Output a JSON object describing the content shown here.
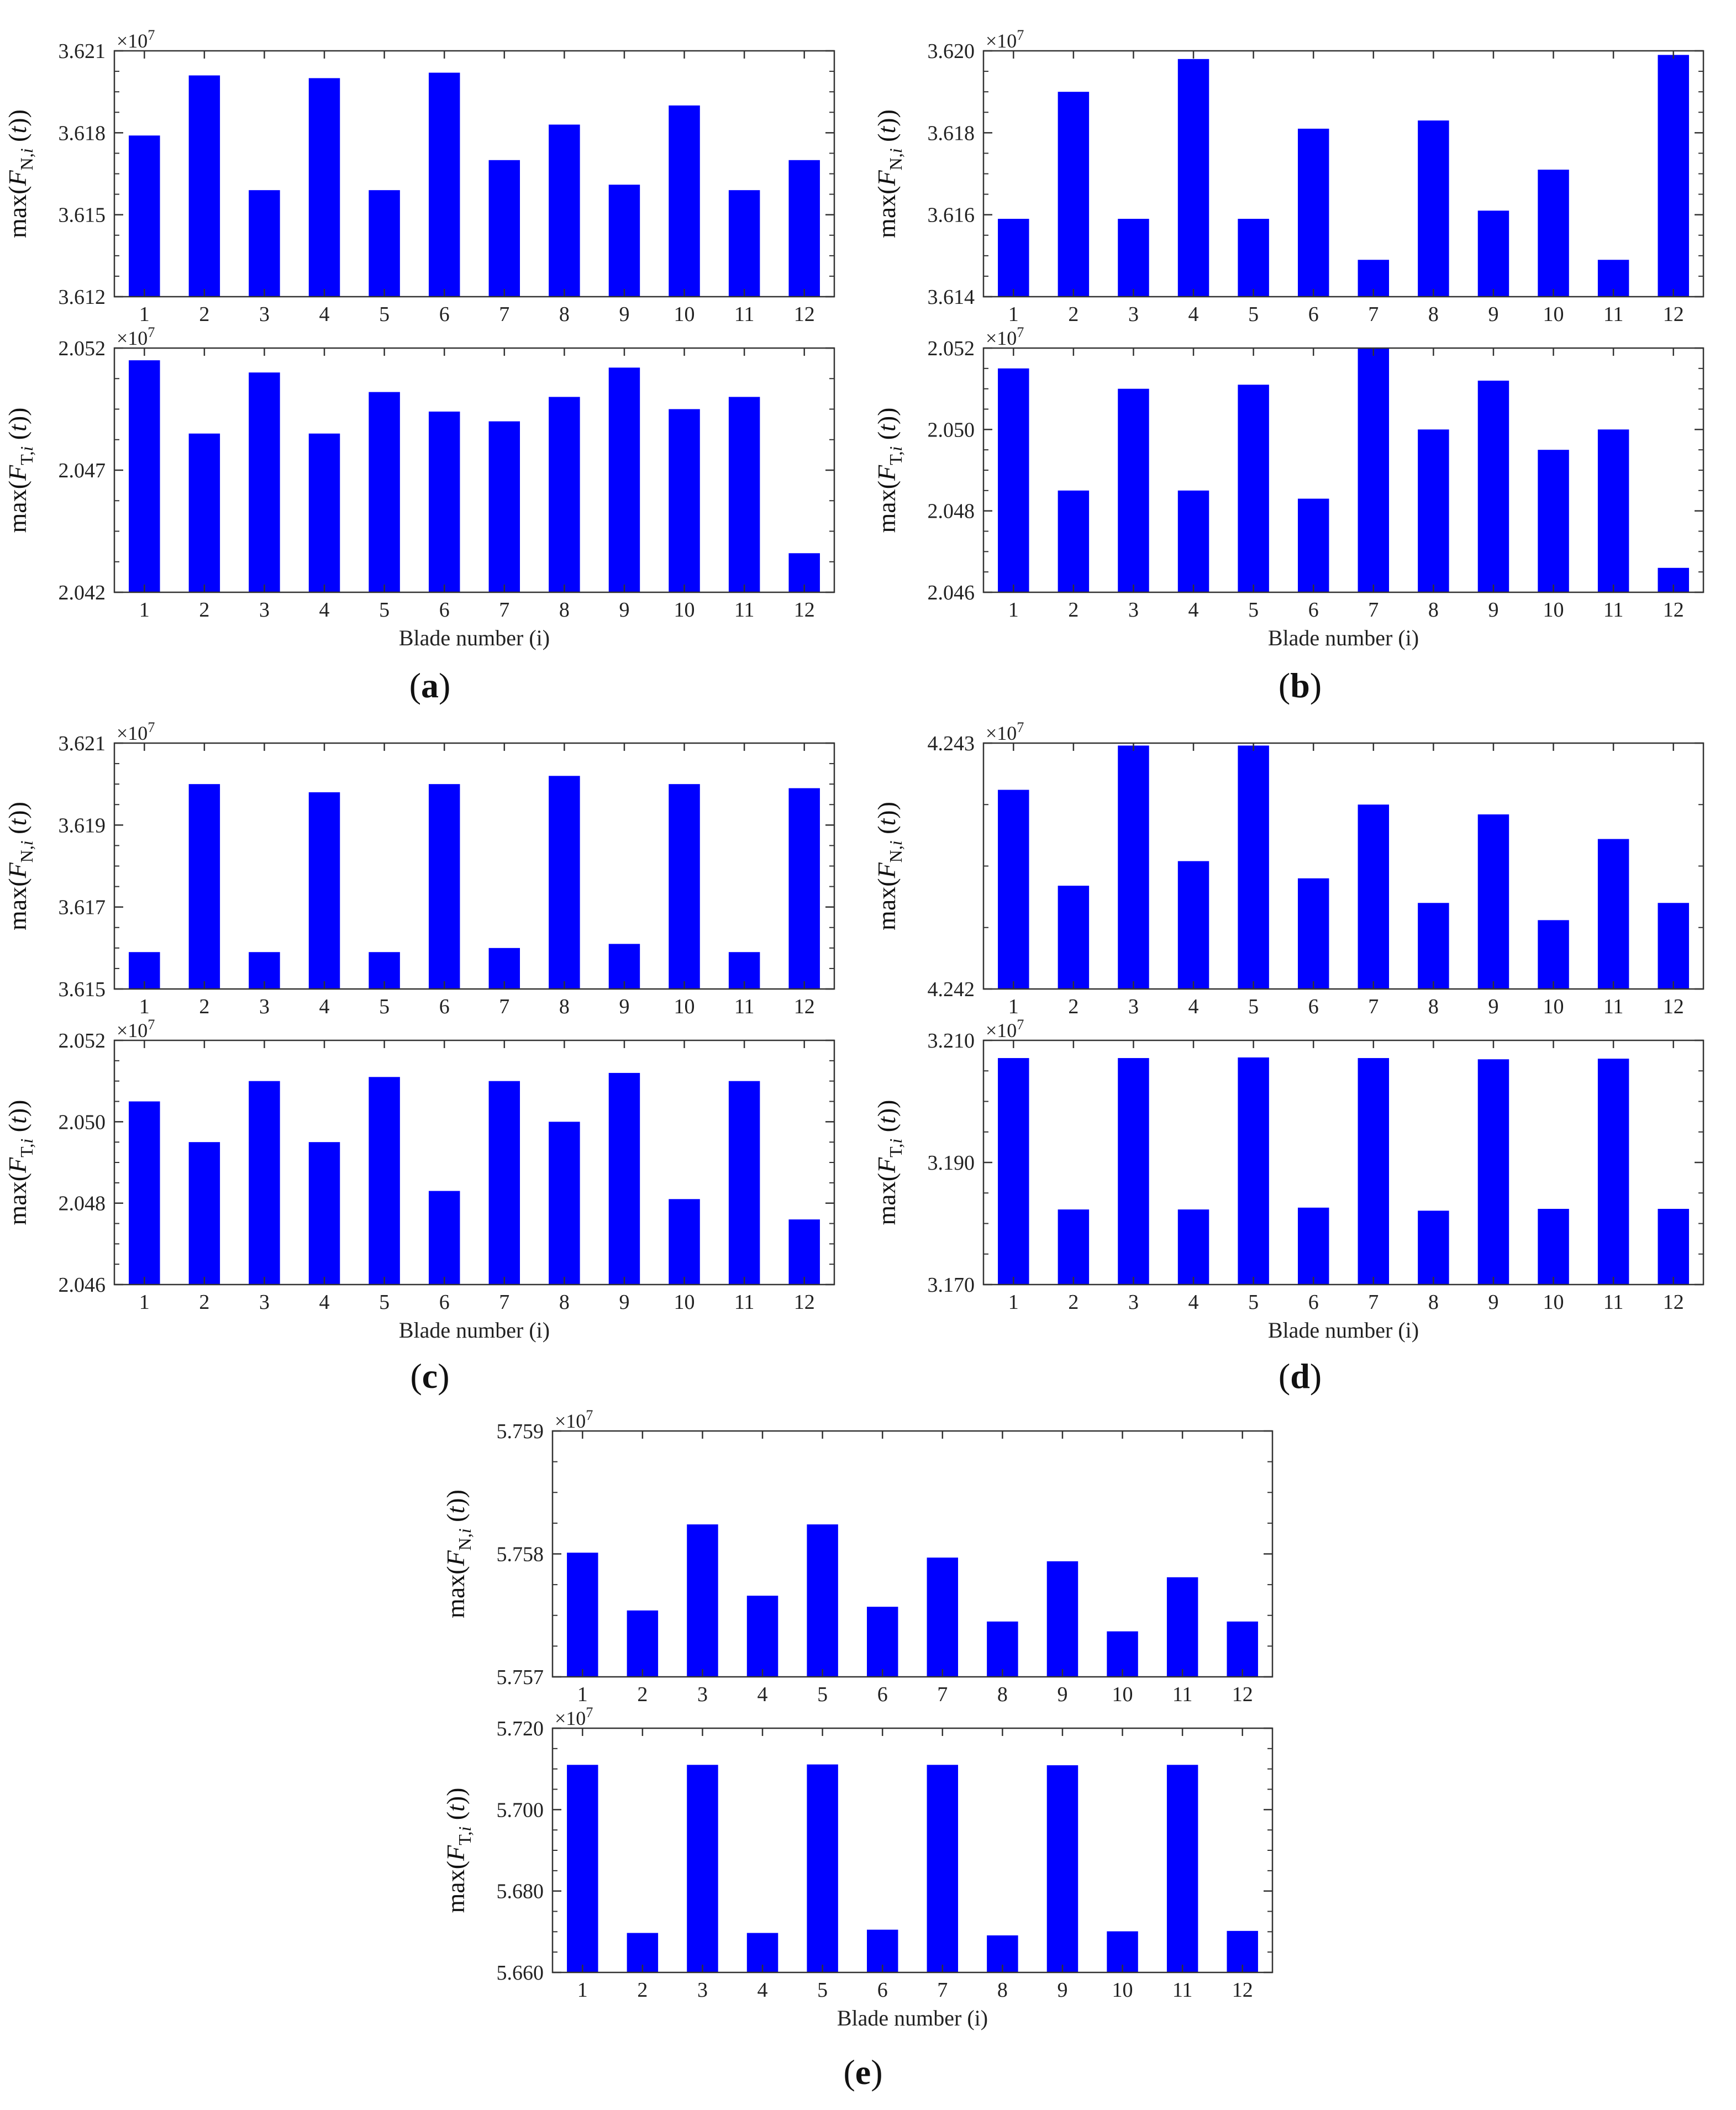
{
  "figure": {
    "panels": [
      {
        "label": "(a)",
        "xlabel": "Blade number (i)"
      },
      {
        "label": "(b)",
        "xlabel": "Blade number (i)"
      },
      {
        "label": "(c)",
        "xlabel": "Blade number (i)"
      },
      {
        "label": "(d)",
        "xlabel": "Blade number (i)"
      },
      {
        "label": "(e)",
        "xlabel": "Blade number (i)"
      }
    ]
  },
  "chart_data": [
    {
      "panel": "a",
      "type": "bar",
      "ylabel": "max(F_N,i (t))",
      "multiplier": "×10^7",
      "categories": [
        "1",
        "2",
        "3",
        "4",
        "5",
        "6",
        "7",
        "8",
        "9",
        "10",
        "11",
        "12"
      ],
      "yticks": [
        "3.612",
        "3.615",
        "3.618",
        "3.621"
      ],
      "ylim": [
        3.612,
        3.621
      ],
      "values": [
        3.6179,
        3.6201,
        3.6159,
        3.62,
        3.6159,
        3.6202,
        3.617,
        3.6183,
        3.6161,
        3.619,
        3.6159,
        3.617
      ],
      "color": "#0000ff"
    },
    {
      "panel": "a",
      "type": "bar",
      "ylabel": "max(F_T,i (t))",
      "multiplier": "×10^7",
      "categories": [
        "1",
        "2",
        "3",
        "4",
        "5",
        "6",
        "7",
        "8",
        "9",
        "10",
        "11",
        "12"
      ],
      "yticks": [
        "2.042",
        "2.047",
        "2.052"
      ],
      "ylim": [
        2.042,
        2.052
      ],
      "values": [
        2.0515,
        2.0485,
        2.051,
        2.0485,
        2.0502,
        2.0494,
        2.049,
        2.05,
        2.0512,
        2.0495,
        2.05,
        2.0436
      ],
      "color": "#0000ff"
    },
    {
      "panel": "b",
      "type": "bar",
      "ylabel": "max(F_N,i (t))",
      "multiplier": "×10^7",
      "categories": [
        "1",
        "2",
        "3",
        "4",
        "5",
        "6",
        "7",
        "8",
        "9",
        "10",
        "11",
        "12"
      ],
      "yticks": [
        "3.614",
        "3.616",
        "3.618",
        "3.620"
      ],
      "ylim": [
        3.614,
        3.62
      ],
      "values": [
        3.6159,
        3.619,
        3.6159,
        3.6198,
        3.6159,
        3.6181,
        3.6149,
        3.6183,
        3.6161,
        3.6171,
        3.6149,
        3.6199
      ],
      "color": "#0000ff"
    },
    {
      "panel": "b",
      "type": "bar",
      "ylabel": "max(F_T,i (t))",
      "multiplier": "×10^7",
      "categories": [
        "1",
        "2",
        "3",
        "4",
        "5",
        "6",
        "7",
        "8",
        "9",
        "10",
        "11",
        "12"
      ],
      "yticks": [
        "2.046",
        "2.048",
        "2.050",
        "2.052"
      ],
      "ylim": [
        2.046,
        2.052
      ],
      "values": [
        2.0515,
        2.0485,
        2.051,
        2.0485,
        2.0511,
        2.0483,
        2.052,
        2.05,
        2.0512,
        2.0495,
        2.05,
        2.0466
      ],
      "color": "#0000ff"
    },
    {
      "panel": "c",
      "type": "bar",
      "ylabel": "max(F_N,i (t))",
      "multiplier": "×10^7",
      "categories": [
        "1",
        "2",
        "3",
        "4",
        "5",
        "6",
        "7",
        "8",
        "9",
        "10",
        "11",
        "12"
      ],
      "yticks": [
        "3.615",
        "3.617",
        "3.619",
        "3.621"
      ],
      "ylim": [
        3.615,
        3.621
      ],
      "values": [
        3.6159,
        3.62,
        3.6159,
        3.6198,
        3.6159,
        3.62,
        3.616,
        3.6202,
        3.6161,
        3.62,
        3.6159,
        3.6199
      ],
      "color": "#0000ff"
    },
    {
      "panel": "c",
      "type": "bar",
      "ylabel": "max(F_T,i (t))",
      "multiplier": "×10^7",
      "categories": [
        "1",
        "2",
        "3",
        "4",
        "5",
        "6",
        "7",
        "8",
        "9",
        "10",
        "11",
        "12"
      ],
      "yticks": [
        "2.046",
        "2.048",
        "2.050",
        "2.052"
      ],
      "ylim": [
        2.046,
        2.052
      ],
      "values": [
        2.0505,
        2.0495,
        2.051,
        2.0495,
        2.0511,
        2.0483,
        2.051,
        2.05,
        2.0512,
        2.0481,
        2.051,
        2.0476
      ],
      "color": "#0000ff"
    },
    {
      "panel": "d",
      "type": "bar",
      "ylabel": "max(F_N,i (t))",
      "multiplier": "×10^7",
      "categories": [
        "1",
        "2",
        "3",
        "4",
        "5",
        "6",
        "7",
        "8",
        "9",
        "10",
        "11",
        "12"
      ],
      "yticks": [
        "4.242",
        "4.243"
      ],
      "ylim": [
        4.242,
        4.243
      ],
      "values": [
        4.24281,
        4.24242,
        4.24299,
        4.24252,
        4.24299,
        4.24245,
        4.24275,
        4.24235,
        4.24271,
        4.24228,
        4.24261,
        4.24235
      ],
      "color": "#0000ff"
    },
    {
      "panel": "d",
      "type": "bar",
      "ylabel": "max(F_T,i (t))",
      "multiplier": "×10^7",
      "categories": [
        "1",
        "2",
        "3",
        "4",
        "5",
        "6",
        "7",
        "8",
        "9",
        "10",
        "11",
        "12"
      ],
      "yticks": [
        "3.170",
        "3.190",
        "3.210"
      ],
      "ylim": [
        3.17,
        3.21
      ],
      "values": [
        3.2071,
        3.1823,
        3.2071,
        3.1823,
        3.2072,
        3.1826,
        3.2071,
        3.1821,
        3.2069,
        3.1824,
        3.207,
        3.1824
      ],
      "color": "#0000ff"
    },
    {
      "panel": "e",
      "type": "bar",
      "ylabel": "max(F_N,i (t))",
      "multiplier": "×10^7",
      "categories": [
        "1",
        "2",
        "3",
        "4",
        "5",
        "6",
        "7",
        "8",
        "9",
        "10",
        "11",
        "12"
      ],
      "yticks": [
        "5.757",
        "5.758",
        "5.759"
      ],
      "ylim": [
        5.757,
        5.759
      ],
      "values": [
        5.75801,
        5.75754,
        5.75824,
        5.75766,
        5.75824,
        5.75757,
        5.75797,
        5.75745,
        5.75794,
        5.75737,
        5.75781,
        5.75745
      ],
      "color": "#0000ff"
    },
    {
      "panel": "e",
      "type": "bar",
      "ylabel": "max(F_T,i (t))",
      "multiplier": "×10^7",
      "categories": [
        "1",
        "2",
        "3",
        "4",
        "5",
        "6",
        "7",
        "8",
        "9",
        "10",
        "11",
        "12"
      ],
      "yticks": [
        "5.660",
        "5.680",
        "5.700",
        "5.720"
      ],
      "ylim": [
        5.66,
        5.72
      ],
      "values": [
        5.711,
        5.6697,
        5.711,
        5.6697,
        5.7111,
        5.6705,
        5.711,
        5.6691,
        5.7109,
        5.6701,
        5.711,
        5.6702
      ],
      "color": "#0000ff"
    }
  ]
}
